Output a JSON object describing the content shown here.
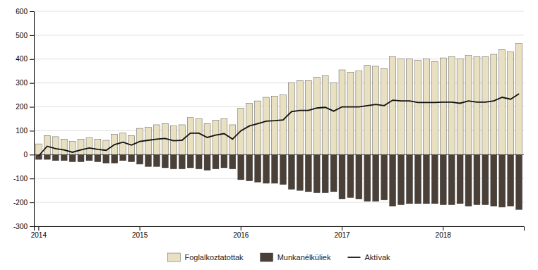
{
  "chart_data": {
    "type": "bar",
    "categories": [
      "2014",
      null,
      null,
      null,
      null,
      null,
      null,
      null,
      null,
      null,
      null,
      null,
      "2015",
      null,
      null,
      null,
      null,
      null,
      null,
      null,
      null,
      null,
      null,
      null,
      "2016",
      null,
      null,
      null,
      null,
      null,
      null,
      null,
      null,
      null,
      null,
      null,
      "2017",
      null,
      null,
      null,
      null,
      null,
      null,
      null,
      null,
      null,
      null,
      null,
      "2018",
      null,
      null,
      null,
      null,
      null,
      null,
      null,
      null,
      null
    ],
    "series": [
      {
        "name": "Foglalkoztatottak",
        "type": "bar",
        "color": "#e8e0c0",
        "values": [
          45,
          80,
          75,
          65,
          55,
          65,
          70,
          65,
          60,
          85,
          90,
          80,
          110,
          115,
          125,
          130,
          120,
          125,
          155,
          150,
          130,
          145,
          150,
          125,
          195,
          215,
          225,
          240,
          245,
          250,
          300,
          310,
          310,
          325,
          330,
          300,
          355,
          345,
          350,
          375,
          370,
          360,
          410,
          400,
          400,
          395,
          400,
          390,
          405,
          410,
          400,
          415,
          410,
          410,
          420,
          440,
          430,
          465
        ]
      },
      {
        "name": "Munkanélküliek",
        "type": "bar",
        "color": "#4a4038",
        "values": [
          -20,
          -20,
          -25,
          -25,
          -30,
          -30,
          -25,
          -30,
          -35,
          -35,
          -25,
          -30,
          -40,
          -50,
          -50,
          -55,
          -60,
          -60,
          -55,
          -60,
          -65,
          -60,
          -55,
          -60,
          -105,
          -110,
          -115,
          -120,
          -120,
          -125,
          -145,
          -150,
          -155,
          -160,
          -160,
          -155,
          -185,
          -180,
          -185,
          -195,
          -195,
          -190,
          -215,
          -210,
          -205,
          -205,
          -205,
          -205,
          -210,
          -210,
          -205,
          -215,
          -210,
          -210,
          -215,
          -220,
          -215,
          -230
        ]
      },
      {
        "name": "Aktívak",
        "type": "line",
        "color": "#111111",
        "values": [
          -5,
          35,
          25,
          20,
          10,
          20,
          28,
          22,
          18,
          42,
          52,
          40,
          55,
          60,
          65,
          68,
          58,
          60,
          90,
          90,
          72,
          82,
          88,
          65,
          100,
          120,
          130,
          140,
          142,
          145,
          180,
          185,
          185,
          195,
          198,
          182,
          200,
          200,
          200,
          205,
          210,
          205,
          228,
          225,
          225,
          218,
          218,
          218,
          220,
          220,
          215,
          225,
          220,
          220,
          225,
          240,
          232,
          255
        ]
      }
    ],
    "ylim": [
      -300,
      600
    ],
    "yticks": [
      -300,
      -200,
      -100,
      0,
      100,
      200,
      300,
      400,
      500,
      600
    ],
    "grid": true,
    "legend": "bottom"
  }
}
